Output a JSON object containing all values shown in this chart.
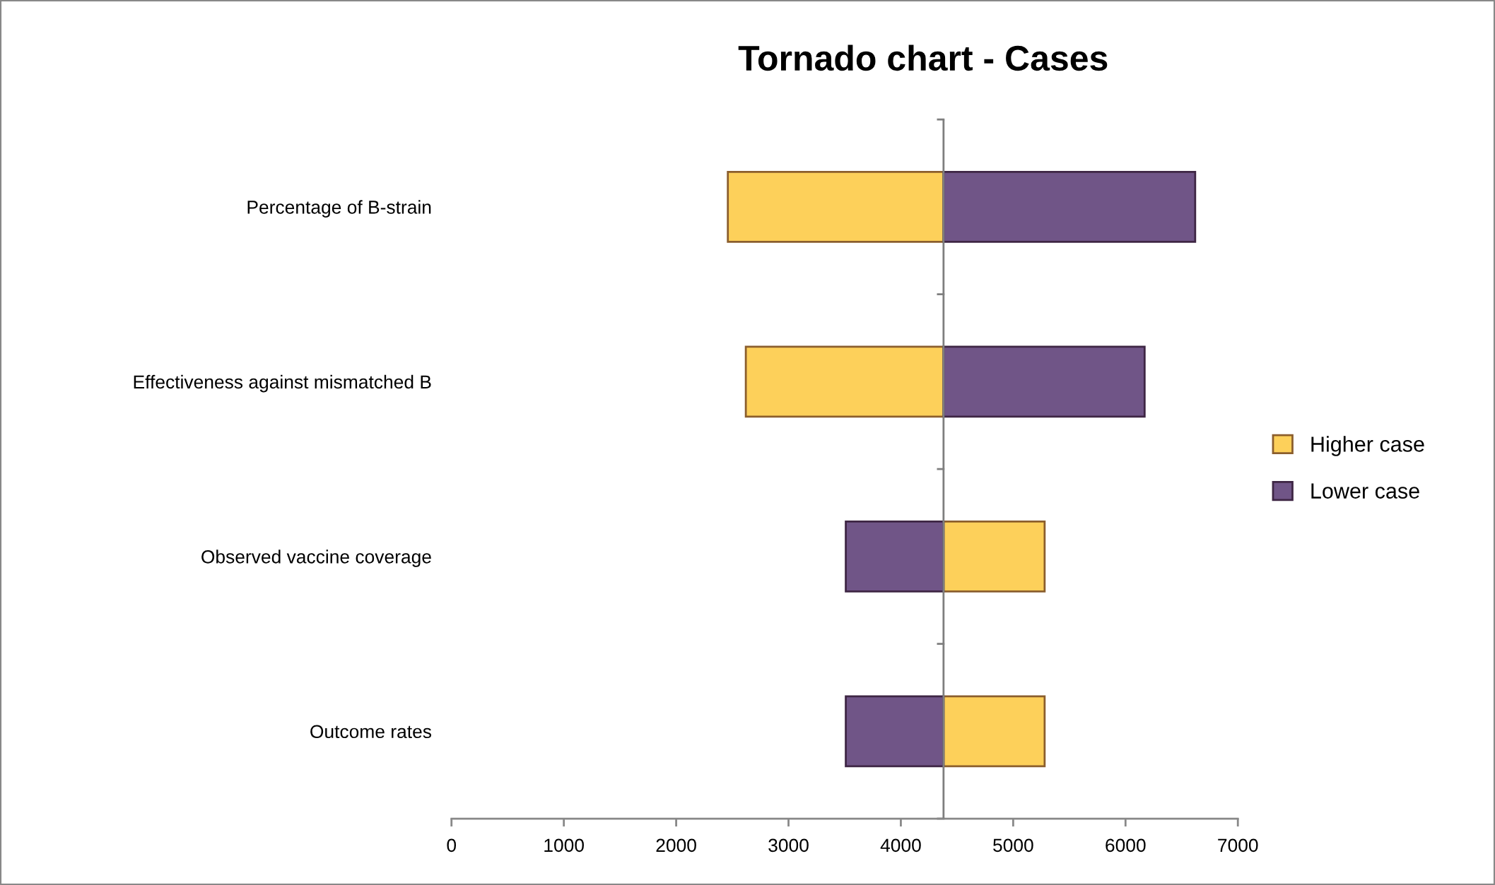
{
  "chart_data": {
    "type": "bar",
    "orientation": "horizontal",
    "title": "Tornado chart - Cases",
    "categories": [
      "Percentage of B-strain",
      "Effectiveness against mismatched B",
      "Observed vaccine coverage",
      "Outcome rates"
    ],
    "series": [
      {
        "name": "Higher case",
        "color": "#fdd05a",
        "base": [
          2460,
          2620,
          4380,
          4380
        ],
        "values": [
          1920,
          1760,
          900,
          900
        ]
      },
      {
        "name": "Lower case",
        "color": "#705587",
        "base": [
          4380,
          4380,
          3510,
          3510
        ],
        "values": [
          2240,
          1790,
          870,
          870
        ]
      }
    ],
    "xlim": [
      0,
      7000
    ],
    "xticks": [
      0,
      1000,
      2000,
      3000,
      4000,
      5000,
      6000,
      7000
    ],
    "ref_lines": [
      {
        "axis": "x",
        "value": 4380,
        "color": "#7f7f7f"
      }
    ],
    "grid": false,
    "legend": "right"
  }
}
